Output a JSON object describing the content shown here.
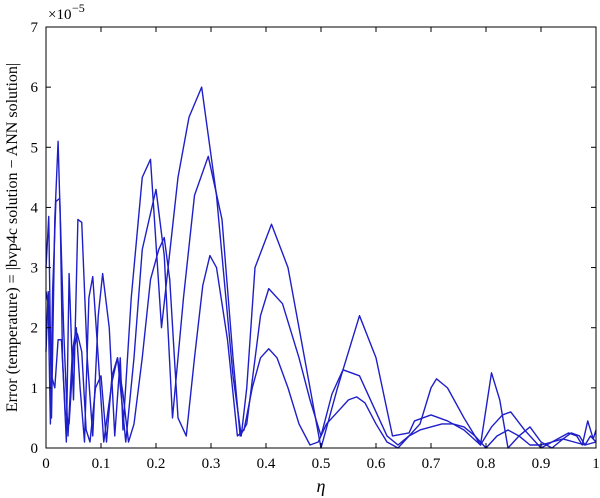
{
  "chart_data": {
    "type": "line",
    "title": "",
    "xlabel": "η",
    "ylabel": "Error (temperature) = |bvp4c solution − ANN solution|",
    "y_multiplier_label": "×10",
    "y_multiplier_exponent": "−5",
    "xlim": [
      0,
      1
    ],
    "ylim": [
      0,
      7
    ],
    "x_ticks": [
      0,
      0.1,
      0.2,
      0.3,
      0.4,
      0.5,
      0.6,
      0.7,
      0.8,
      0.9,
      1
    ],
    "x_tick_labels": [
      "0",
      "0.1",
      "0.2",
      "0.3",
      "0.4",
      "0.5",
      "0.6",
      "0.7",
      "0.8",
      "0.9",
      "1"
    ],
    "y_ticks": [
      0,
      1,
      2,
      3,
      4,
      5,
      6,
      7
    ],
    "y_tick_labels": [
      "0",
      "1",
      "2",
      "3",
      "4",
      "5",
      "6",
      "7"
    ],
    "grid": false,
    "legend": "none",
    "line_color": "#1f1fc8",
    "series": [
      {
        "x": [
          0,
          0.005,
          0.01,
          0.016,
          0.022,
          0.026,
          0.03,
          0.037,
          0.042,
          0.05,
          0.058,
          0.065,
          0.075,
          0.085,
          0.095,
          0.103,
          0.115,
          0.125,
          0.135,
          0.14,
          0.155,
          0.175,
          0.19,
          0.21,
          0.24,
          0.26,
          0.283,
          0.31,
          0.34,
          0.355,
          0.365,
          0.38,
          0.41,
          0.44,
          0.47,
          0.5,
          0.53,
          0.57,
          0.6,
          0.63,
          0.66,
          0.67,
          0.7,
          0.73,
          0.76,
          0.79,
          0.81,
          0.83,
          0.845,
          0.87,
          0.9,
          0.93,
          0.95,
          0.965,
          0.975,
          0.985,
          0.995,
          1
        ],
        "y": [
          3.0,
          3.85,
          0.5,
          3.8,
          5.1,
          3.8,
          1.5,
          0.1,
          2.9,
          0.8,
          3.8,
          3.75,
          1.5,
          0.2,
          2.2,
          2.9,
          2.0,
          0.2,
          1.5,
          0.3,
          2.5,
          4.5,
          4.8,
          2.0,
          4.5,
          5.5,
          6.0,
          4.2,
          1.2,
          0.2,
          1.0,
          3.0,
          3.72,
          3.0,
          1.5,
          0.0,
          1.0,
          2.2,
          1.5,
          0.2,
          0.25,
          0.45,
          0.55,
          0.45,
          0.3,
          0.05,
          0.35,
          0.55,
          0.6,
          0.3,
          0.0,
          0.15,
          0.25,
          0.2,
          0.05,
          0.45,
          0.15,
          0.3
        ]
      },
      {
        "x": [
          0,
          0.004,
          0.008,
          0.012,
          0.018,
          0.025,
          0.032,
          0.04,
          0.048,
          0.055,
          0.062,
          0.07,
          0.078,
          0.085,
          0.095,
          0.105,
          0.12,
          0.13,
          0.145,
          0.16,
          0.175,
          0.2,
          0.215,
          0.23,
          0.25,
          0.27,
          0.295,
          0.32,
          0.34,
          0.353,
          0.365,
          0.39,
          0.405,
          0.43,
          0.46,
          0.48,
          0.5,
          0.52,
          0.54,
          0.57,
          0.6,
          0.62,
          0.64,
          0.66,
          0.68,
          0.7,
          0.71,
          0.73,
          0.76,
          0.79,
          0.81,
          0.825,
          0.84,
          0.86,
          0.88,
          0.9,
          0.92,
          0.94,
          0.955,
          0.97,
          0.98,
          0.99,
          1
        ],
        "y": [
          2.6,
          2.4,
          0.4,
          2.6,
          4.1,
          4.15,
          2.0,
          0.2,
          1.6,
          2.0,
          1.0,
          0.1,
          2.5,
          2.85,
          1.5,
          0.1,
          1.1,
          1.5,
          0.1,
          1.5,
          3.3,
          4.3,
          3.2,
          0.5,
          2.5,
          4.2,
          4.85,
          3.8,
          1.5,
          0.2,
          0.4,
          2.2,
          2.65,
          2.4,
          1.5,
          0.8,
          0.2,
          0.9,
          1.3,
          1.2,
          0.6,
          0.2,
          0.05,
          0.2,
          0.4,
          1.0,
          1.15,
          1.0,
          0.5,
          0.05,
          1.25,
          0.8,
          0.0,
          0.2,
          0.35,
          0.1,
          0.0,
          0.15,
          0.25,
          0.2,
          0.05,
          0.2,
          0.1
        ]
      },
      {
        "x": [
          0,
          0.004,
          0.01,
          0.016,
          0.022,
          0.028,
          0.035,
          0.042,
          0.05,
          0.057,
          0.065,
          0.073,
          0.08,
          0.09,
          0.1,
          0.11,
          0.12,
          0.13,
          0.14,
          0.15,
          0.16,
          0.175,
          0.19,
          0.205,
          0.215,
          0.225,
          0.24,
          0.255,
          0.27,
          0.285,
          0.298,
          0.31,
          0.33,
          0.348,
          0.36,
          0.375,
          0.39,
          0.405,
          0.42,
          0.44,
          0.46,
          0.48,
          0.495,
          0.51,
          0.53,
          0.55,
          0.565,
          0.58,
          0.6,
          0.62,
          0.64,
          0.66,
          0.68,
          0.7,
          0.72,
          0.74,
          0.76,
          0.78,
          0.8,
          0.82,
          0.84,
          0.86,
          0.88,
          0.9,
          0.92,
          0.94,
          0.96,
          0.98,
          1
        ],
        "y": [
          1.6,
          2.6,
          1.2,
          1.0,
          1.8,
          1.8,
          0.6,
          0.4,
          1.6,
          1.9,
          1.6,
          0.3,
          0.1,
          1.0,
          1.2,
          0.1,
          1.2,
          1.5,
          0.9,
          0.1,
          0.4,
          1.5,
          2.8,
          3.3,
          3.5,
          2.8,
          0.5,
          0.2,
          1.5,
          2.7,
          3.2,
          3.0,
          1.8,
          0.2,
          0.3,
          1.0,
          1.5,
          1.65,
          1.5,
          1.0,
          0.4,
          0.05,
          0.1,
          0.4,
          0.6,
          0.8,
          0.85,
          0.75,
          0.4,
          0.1,
          0.0,
          0.2,
          0.3,
          0.35,
          0.4,
          0.4,
          0.35,
          0.2,
          0.0,
          0.2,
          0.3,
          0.2,
          0.05,
          0.05,
          0.1,
          0.15,
          0.1,
          0.05,
          0.1
        ]
      }
    ]
  }
}
